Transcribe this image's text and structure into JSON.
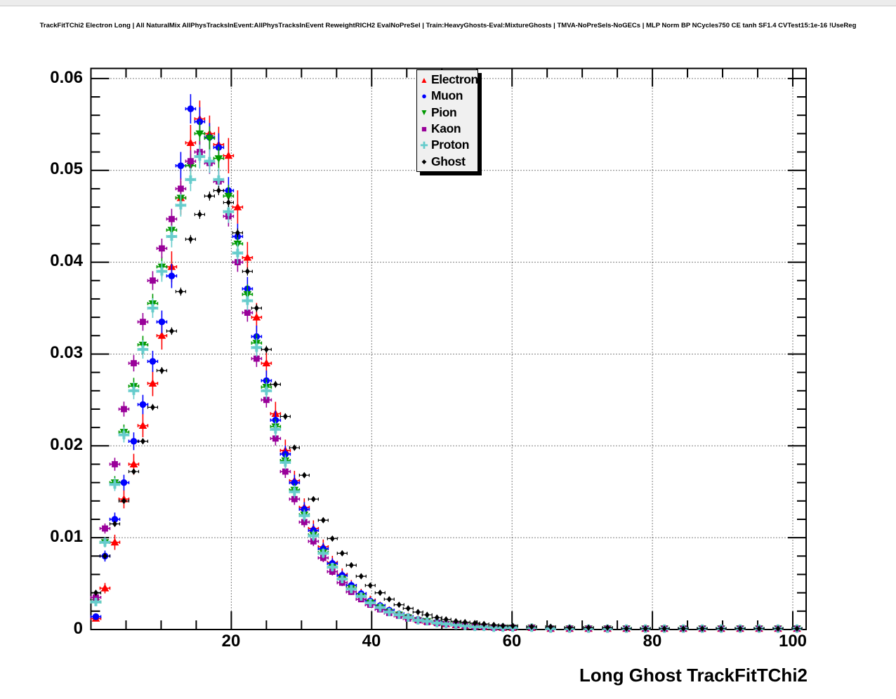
{
  "title": "TrackFitTChi2 Electron Long | All NaturalMix AllPhysTracksInEvent:AllPhysTracksInEvent ReweightRICH2 EvalNoPreSel | Train:HeavyGhosts-Eval:MixtureGhosts | TMVA-NoPreSels-NoGECs | MLP Norm BP NCycles750 CE tanh SF1.4 CVTest15:1e-16 !UseReg",
  "axes": {
    "x_label": "Long Ghost TrackFitTChi2",
    "x_tick_labels": [
      "20",
      "40",
      "60",
      "80",
      "100"
    ],
    "y_tick_labels": [
      "0",
      "0.01",
      "0.02",
      "0.03",
      "0.04",
      "0.05",
      "0.06"
    ]
  },
  "legend": {
    "entries": [
      {
        "label": "Electron",
        "color": "#ff0000",
        "marker": "triangle-up"
      },
      {
        "label": "Muon",
        "color": "#0000ff",
        "marker": "circle"
      },
      {
        "label": "Pion",
        "color": "#009900",
        "marker": "triangle-down"
      },
      {
        "label": "Kaon",
        "color": "#990099",
        "marker": "square"
      },
      {
        "label": "Proton",
        "color": "#66cccc",
        "marker": "cross"
      },
      {
        "label": "Ghost",
        "color": "#000000",
        "marker": "diamond"
      }
    ],
    "position": "top-center",
    "background": "#f0f0f0",
    "shadow_color": "#000000"
  },
  "chart_data": {
    "type": "scatter",
    "subtype": "errorbar-histogram",
    "title": "TrackFitTChi2 Electron Long | All NaturalMix AllPhysTracksInEvent:AllPhysTracksInEvent ReweightRICH2 EvalNoPreSel | Train:HeavyGhosts-Eval:MixtureGhosts | TMVA-NoPreSels-NoGECs | MLP Norm BP NCycles750 CE tanh SF1.4 CVTest15:1e-16 !UseReg",
    "xlabel": "Long Ghost TrackFitTChi2",
    "ylabel": "",
    "xlim": [
      0,
      101.9
    ],
    "ylim": [
      0,
      0.0611
    ],
    "x_major": [
      20,
      40,
      60,
      80,
      100
    ],
    "y_major": [
      0.01,
      0.02,
      0.03,
      0.04,
      0.05,
      0.06
    ],
    "x_minor_step": 5,
    "y_minor_step": 0.002,
    "grid": "dotted",
    "grid_color": "#000000",
    "frame_color": "#000000",
    "x": [
      0.7,
      2.0,
      3.4,
      4.7,
      6.1,
      7.4,
      8.8,
      10.1,
      11.5,
      12.8,
      14.2,
      15.5,
      16.9,
      18.2,
      19.6,
      20.9,
      22.3,
      23.6,
      25.0,
      26.3,
      27.7,
      29.0,
      30.4,
      31.7,
      33.1,
      34.4,
      35.8,
      37.1,
      38.5,
      39.8,
      41.2,
      42.5,
      43.9,
      45.2,
      46.6,
      47.9,
      49.3,
      50.6,
      52.0,
      53.3,
      54.7,
      56.0,
      57.4,
      58.7,
      60.1,
      62.8,
      65.5,
      68.2,
      70.9,
      73.6,
      76.3,
      79.0,
      81.7,
      84.4,
      87.1,
      89.8,
      92.5,
      95.2,
      97.9,
      100.6
    ],
    "series": [
      {
        "name": "Electron",
        "color": "#ff0000",
        "marker": "triangle-up",
        "peak": 0.0556,
        "err_scale": 0.002,
        "values": [
          0.0012,
          0.0045,
          0.0095,
          0.0142,
          0.018,
          0.0222,
          0.0268,
          0.032,
          0.0395,
          0.047,
          0.053,
          0.0556,
          0.054,
          0.0528,
          0.0516,
          0.046,
          0.0405,
          0.034,
          0.029,
          0.0235,
          0.0195,
          0.0162,
          0.0133,
          0.011,
          0.009,
          0.0073,
          0.006,
          0.0048,
          0.0039,
          0.0032,
          0.0026,
          0.0021,
          0.0017,
          0.0014,
          0.0011,
          0.0009,
          0.0008,
          0.0006,
          0.0005,
          0.0004,
          0.0004,
          0.0003,
          0.0003,
          0.0002,
          0.0002,
          0.0002,
          0.0001,
          0.0001,
          0.0001,
          0.0001,
          0.0001,
          0.0001,
          0.0001,
          0.0001,
          0.0001,
          0.0001,
          0.0001,
          0.0001,
          0.0001,
          0.0001
        ]
      },
      {
        "name": "Muon",
        "color": "#0000ff",
        "marker": "circle",
        "peak": 0.0567,
        "err_scale": 0.0016,
        "values": [
          0.0014,
          0.008,
          0.012,
          0.016,
          0.0205,
          0.0245,
          0.0292,
          0.0335,
          0.0385,
          0.0505,
          0.0567,
          0.0553,
          0.0536,
          0.0525,
          0.0478,
          0.0428,
          0.0371,
          0.0319,
          0.0271,
          0.0228,
          0.0191,
          0.016,
          0.0131,
          0.0108,
          0.0088,
          0.0072,
          0.0059,
          0.0048,
          0.0039,
          0.0031,
          0.0026,
          0.0021,
          0.0017,
          0.0014,
          0.0011,
          0.0009,
          0.0008,
          0.0006,
          0.0005,
          0.0004,
          0.0003,
          0.0003,
          0.0002,
          0.0002,
          0.0002,
          0.0002,
          0.0001,
          0.0001,
          0.0001,
          0.0001,
          0.0001,
          0.0001,
          0.0001,
          0.0001,
          0.0001,
          0.0001,
          0.0001,
          0.0001,
          0.0001,
          0.0001
        ]
      },
      {
        "name": "Pion",
        "color": "#009900",
        "marker": "triangle-down",
        "peak": 0.054,
        "err_scale": 0.0013,
        "values": [
          0.003,
          0.0095,
          0.016,
          0.0215,
          0.0265,
          0.031,
          0.0355,
          0.0395,
          0.0435,
          0.047,
          0.0505,
          0.054,
          0.0535,
          0.0513,
          0.0472,
          0.042,
          0.0365,
          0.0312,
          0.0264,
          0.0221,
          0.0184,
          0.0152,
          0.0125,
          0.0103,
          0.0084,
          0.0068,
          0.0055,
          0.0045,
          0.0036,
          0.0029,
          0.0024,
          0.0019,
          0.0016,
          0.0013,
          0.001,
          0.0009,
          0.0007,
          0.0006,
          0.0005,
          0.0004,
          0.0003,
          0.0003,
          0.0002,
          0.0002,
          0.0002,
          0.0002,
          0.0001,
          0.0001,
          0.0001,
          0.0001,
          0.0001,
          0.0001,
          0.0001,
          0.0001,
          0.0001,
          0.0001,
          0.0001,
          0.0001,
          0.0001,
          0.0001
        ]
      },
      {
        "name": "Kaon",
        "color": "#990099",
        "marker": "square",
        "peak": 0.052,
        "err_scale": 0.0012,
        "values": [
          0.0035,
          0.011,
          0.018,
          0.024,
          0.029,
          0.0335,
          0.038,
          0.0415,
          0.0447,
          0.048,
          0.051,
          0.052,
          0.0508,
          0.0488,
          0.045,
          0.04,
          0.0345,
          0.0295,
          0.025,
          0.0208,
          0.0172,
          0.0142,
          0.0117,
          0.0096,
          0.0078,
          0.0063,
          0.0051,
          0.0041,
          0.0033,
          0.0027,
          0.0022,
          0.0018,
          0.0015,
          0.0012,
          0.001,
          0.0008,
          0.0007,
          0.0006,
          0.0005,
          0.0004,
          0.0003,
          0.0003,
          0.0002,
          0.0002,
          0.0002,
          0.0002,
          0.0001,
          0.0001,
          0.0001,
          0.0001,
          0.0001,
          0.0001,
          0.0001,
          0.0001,
          0.0001,
          0.0001,
          0.0001,
          0.0001,
          0.0001,
          0.0001
        ]
      },
      {
        "name": "Proton",
        "color": "#66cccc",
        "marker": "cross",
        "peak": 0.0515,
        "err_scale": 0.0013,
        "values": [
          0.003,
          0.0095,
          0.0158,
          0.0212,
          0.026,
          0.0305,
          0.035,
          0.039,
          0.0428,
          0.0462,
          0.049,
          0.0515,
          0.051,
          0.049,
          0.0455,
          0.041,
          0.0358,
          0.0307,
          0.026,
          0.0218,
          0.0182,
          0.015,
          0.0124,
          0.0102,
          0.0083,
          0.0068,
          0.0055,
          0.0044,
          0.0036,
          0.0029,
          0.0024,
          0.0019,
          0.0016,
          0.0013,
          0.001,
          0.0009,
          0.0007,
          0.0006,
          0.0005,
          0.0004,
          0.0003,
          0.0003,
          0.0002,
          0.0002,
          0.0002,
          0.0002,
          0.0001,
          0.0001,
          0.0001,
          0.0001,
          0.0001,
          0.0001,
          0.0001,
          0.0001,
          0.0001,
          0.0001,
          0.0001,
          0.0001,
          0.0001,
          0.0001
        ]
      },
      {
        "name": "Ghost",
        "color": "#000000",
        "marker": "diamond",
        "peak": 0.0478,
        "err_scale": 0.0005,
        "values": [
          0.004,
          0.008,
          0.0115,
          0.014,
          0.0172,
          0.0205,
          0.0242,
          0.0282,
          0.0325,
          0.0368,
          0.0425,
          0.0452,
          0.0472,
          0.0478,
          0.0465,
          0.0432,
          0.039,
          0.035,
          0.0305,
          0.0267,
          0.0232,
          0.0198,
          0.0168,
          0.0142,
          0.0119,
          0.0099,
          0.0083,
          0.007,
          0.0058,
          0.0048,
          0.004,
          0.0033,
          0.0027,
          0.0023,
          0.0019,
          0.0016,
          0.0013,
          0.0011,
          0.0009,
          0.0008,
          0.0007,
          0.0006,
          0.0005,
          0.0004,
          0.0004,
          0.0003,
          0.0003,
          0.0002,
          0.0002,
          0.0002,
          0.0001,
          0.0001,
          0.0001,
          0.0001,
          0.0001,
          0.0001,
          0.0001,
          0.0001,
          0.0001,
          0.0001
        ]
      }
    ]
  }
}
